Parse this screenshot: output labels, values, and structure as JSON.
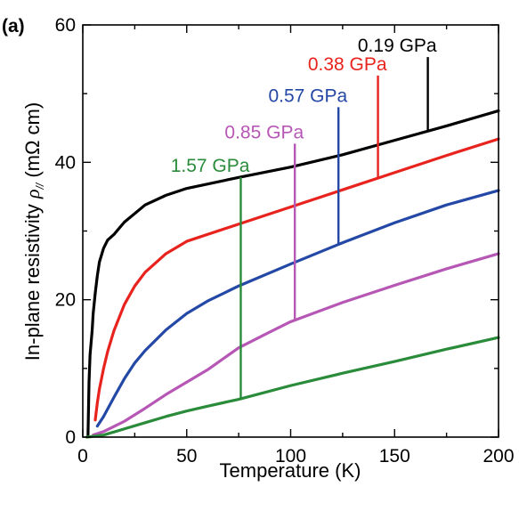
{
  "chart_data": {
    "type": "line",
    "panel_label": "(a)",
    "xlabel": "Temperature (K)",
    "ylabel": "In-plane resistivity ρ// (mΩ cm)",
    "ylabel_main": "In-plane resistivity ",
    "ylabel_rho": "ρ",
    "ylabel_sub": "//",
    "ylabel_unit": " (mΩ cm)",
    "xlim": [
      0,
      200
    ],
    "ylim": [
      0,
      60
    ],
    "xticks": [
      0,
      50,
      100,
      150,
      200
    ],
    "yticks": [
      0,
      20,
      40,
      60
    ],
    "grid": false,
    "legend": "inline labels with leader lines",
    "series": [
      {
        "name": "0.19 GPa",
        "color": "#000000",
        "label_at_T": 166,
        "points": [
          [
            2.5,
            0.2
          ],
          [
            3,
            8
          ],
          [
            3.5,
            12
          ],
          [
            4.5,
            15.5
          ],
          [
            5,
            18
          ],
          [
            6,
            21
          ],
          [
            7,
            23.5
          ],
          [
            8,
            25.5
          ],
          [
            10,
            27.5
          ],
          [
            12,
            28.7
          ],
          [
            15,
            29.5
          ],
          [
            20,
            31.3
          ],
          [
            30,
            33.8
          ],
          [
            40,
            35.2
          ],
          [
            50,
            36.2
          ],
          [
            75,
            37.8
          ],
          [
            100,
            39.3
          ],
          [
            125,
            41.1
          ],
          [
            150,
            43.2
          ],
          [
            175,
            45.3
          ],
          [
            200,
            47.5
          ]
        ]
      },
      {
        "name": "0.38 GPa",
        "color": "#e8231e",
        "label_at_T": 142,
        "points": [
          [
            6,
            2.5
          ],
          [
            7,
            5
          ],
          [
            8,
            7
          ],
          [
            9,
            8.5
          ],
          [
            10,
            10
          ],
          [
            12,
            12.5
          ],
          [
            15,
            15.5
          ],
          [
            20,
            19.3
          ],
          [
            25,
            22
          ],
          [
            30,
            24
          ],
          [
            40,
            26.7
          ],
          [
            50,
            28.5
          ],
          [
            75,
            31
          ],
          [
            100,
            33.5
          ],
          [
            125,
            36
          ],
          [
            150,
            38.5
          ],
          [
            175,
            41
          ],
          [
            200,
            43.4
          ]
        ]
      },
      {
        "name": "0.57 GPa",
        "color": "#2448a6",
        "label_at_T": 123,
        "points": [
          [
            7,
            1.6
          ],
          [
            10,
            3
          ],
          [
            15,
            5.8
          ],
          [
            20,
            8.5
          ],
          [
            25,
            10.8
          ],
          [
            30,
            12.6
          ],
          [
            40,
            15.6
          ],
          [
            50,
            18
          ],
          [
            60,
            19.8
          ],
          [
            75,
            22
          ],
          [
            100,
            25.2
          ],
          [
            125,
            28.3
          ],
          [
            150,
            31.2
          ],
          [
            175,
            33.8
          ],
          [
            200,
            35.9
          ]
        ]
      },
      {
        "name": "0.85 GPa",
        "color": "#b757b5",
        "label_at_T": 102,
        "points": [
          [
            5,
            0.3
          ],
          [
            10,
            0.8
          ],
          [
            20,
            2.3
          ],
          [
            30,
            4.2
          ],
          [
            40,
            6.2
          ],
          [
            50,
            8
          ],
          [
            60,
            9.8
          ],
          [
            75,
            13
          ],
          [
            90,
            15.3
          ],
          [
            100,
            16.8
          ],
          [
            125,
            19.6
          ],
          [
            150,
            22.1
          ],
          [
            175,
            24.5
          ],
          [
            200,
            26.7
          ]
        ]
      },
      {
        "name": "1.57 GPa",
        "color": "#2a8c3a",
        "label_at_T": 76,
        "points": [
          [
            2,
            0
          ],
          [
            10,
            0.3
          ],
          [
            20,
            1.2
          ],
          [
            30,
            2.1
          ],
          [
            40,
            3
          ],
          [
            50,
            3.8
          ],
          [
            60,
            4.5
          ],
          [
            75,
            5.5
          ],
          [
            100,
            7.5
          ],
          [
            125,
            9.3
          ],
          [
            150,
            11
          ],
          [
            175,
            12.8
          ],
          [
            200,
            14.5
          ]
        ]
      }
    ]
  }
}
